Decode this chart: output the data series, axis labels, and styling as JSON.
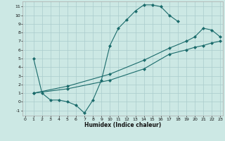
{
  "xlabel": "Humidex (Indice chaleur)",
  "bg_color": "#cce8e4",
  "grid_color": "#aacccc",
  "line_color": "#1a6b6b",
  "line1_x": [
    1,
    2,
    3,
    4,
    5,
    6,
    7,
    8,
    9,
    10,
    11,
    12,
    13,
    14,
    15,
    16,
    17,
    18
  ],
  "line1_y": [
    5,
    1,
    0.2,
    0.2,
    0.0,
    -0.4,
    -1.3,
    0.2,
    2.5,
    6.5,
    8.5,
    9.5,
    10.5,
    11.2,
    11.2,
    11.0,
    10.0,
    9.3
  ],
  "line2_x": [
    1,
    5,
    10,
    14,
    17,
    19,
    20,
    21,
    22,
    23
  ],
  "line2_y": [
    1,
    1.8,
    3.2,
    4.8,
    6.2,
    7.0,
    7.5,
    8.5,
    8.3,
    7.5
  ],
  "line3_x": [
    1,
    5,
    10,
    14,
    17,
    19,
    20,
    21,
    22,
    23
  ],
  "line3_y": [
    1,
    1.5,
    2.5,
    3.8,
    5.5,
    6.0,
    6.3,
    6.5,
    6.8,
    7.0
  ],
  "xlim": [
    -0.3,
    23.3
  ],
  "ylim": [
    -1.6,
    11.6
  ],
  "xticks": [
    0,
    1,
    2,
    3,
    4,
    5,
    6,
    7,
    8,
    9,
    10,
    11,
    12,
    13,
    14,
    15,
    16,
    17,
    18,
    19,
    20,
    21,
    22,
    23
  ],
  "yticks": [
    -1,
    0,
    1,
    2,
    3,
    4,
    5,
    6,
    7,
    8,
    9,
    10,
    11
  ]
}
